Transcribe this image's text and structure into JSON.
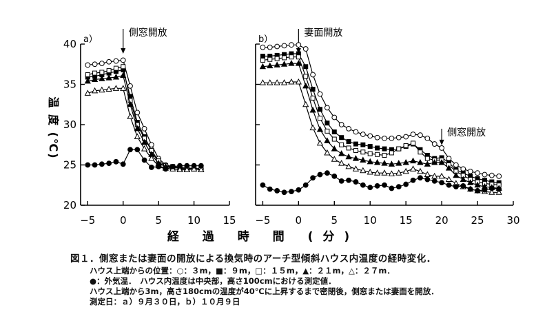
{
  "figure": {
    "y_axis_label": "温 度 (℃)",
    "x_axis_label": "経 過 時 間 (分)",
    "caption": {
      "title": "図１．側窓または妻面の開放による換気時のアーチ型傾斜ハウス内温度の経時変化．",
      "line1": "ハウス上端からの位置：○：３m，■：９m，□：１５m，▲：２１m，△：２７m．",
      "line2": "●：外気温．　ハウス内温度は中央部，高さ100cmにおける測定値．",
      "line3": "ハウス上端から3m，高さ180cmの温度が40℃に上昇するまで密閉後，側窓または妻面を開放．",
      "line4": "測定日：ａ）９月３０日，ｂ）１０月９日"
    }
  },
  "chart_data": [
    {
      "type": "line",
      "panel_label": "a）",
      "annotations": [
        {
          "text": "側窓開放",
          "x": 0
        }
      ],
      "xlim": [
        -6,
        15
      ],
      "ylim": [
        20,
        40
      ],
      "x_ticks": [
        -5,
        0,
        5,
        10,
        15
      ],
      "y_ticks": [
        20,
        25,
        30,
        35,
        40
      ],
      "xlabel": "経過時間（分）",
      "ylabel": "温度（℃）",
      "x": [
        -5,
        -4,
        -3,
        -2,
        -1,
        0,
        1,
        2,
        3,
        4,
        5,
        6,
        7,
        8,
        9,
        10,
        11
      ],
      "series": [
        {
          "name": "3m",
          "marker": "open-circle",
          "values": [
            37.4,
            37.5,
            37.6,
            37.8,
            37.9,
            38.0,
            34.8,
            31.5,
            29.5,
            27.5,
            25.8,
            25.0,
            24.8,
            24.7,
            24.6,
            24.6,
            24.5
          ]
        },
        {
          "name": "9m",
          "marker": "filled-square",
          "values": [
            35.9,
            36.0,
            36.2,
            36.4,
            36.6,
            36.8,
            33.5,
            30.3,
            28.5,
            26.8,
            25.3,
            24.8,
            24.7,
            24.6,
            24.5,
            24.5,
            24.5
          ]
        },
        {
          "name": "15m",
          "marker": "open-square",
          "values": [
            36.2,
            36.4,
            36.5,
            36.7,
            37.0,
            37.2,
            33.0,
            30.0,
            28.3,
            26.8,
            25.5,
            24.9,
            24.8,
            24.6,
            24.5,
            24.5,
            24.4
          ]
        },
        {
          "name": "21m",
          "marker": "filled-triangle",
          "values": [
            35.4,
            35.6,
            35.7,
            35.8,
            35.9,
            36.1,
            32.5,
            29.5,
            27.8,
            26.3,
            25.2,
            24.8,
            24.7,
            24.6,
            24.5,
            24.5,
            24.4
          ]
        },
        {
          "name": "27m",
          "marker": "open-triangle",
          "values": [
            33.9,
            34.2,
            34.3,
            34.4,
            34.5,
            34.5,
            31.0,
            28.5,
            27.0,
            25.8,
            24.9,
            24.6,
            24.5,
            24.4,
            24.4,
            24.5,
            24.4
          ]
        },
        {
          "name": "外気温",
          "marker": "filled-circle",
          "values": [
            25.0,
            25.0,
            25.1,
            25.2,
            25.4,
            25.1,
            26.9,
            26.9,
            25.6,
            24.7,
            24.8,
            24.5,
            24.8,
            24.9,
            24.9,
            24.9,
            24.9
          ]
        }
      ]
    },
    {
      "type": "line",
      "panel_label": "b）",
      "annotations": [
        {
          "text": "妻面開放",
          "x": 0
        },
        {
          "text": "側窓開放",
          "x": 20
        }
      ],
      "xlim": [
        -6,
        30
      ],
      "ylim": [
        20,
        40
      ],
      "x_ticks": [
        -5,
        0,
        5,
        10,
        15,
        20,
        25,
        30
      ],
      "y_ticks": [
        20,
        25,
        30,
        35,
        40
      ],
      "xlabel": "経過時間（分）",
      "ylabel": "温度（℃）",
      "x": [
        -5,
        -4,
        -3,
        -2,
        -1,
        0,
        1,
        2,
        3,
        4,
        5,
        6,
        7,
        8,
        9,
        10,
        11,
        12,
        13,
        14,
        15,
        16,
        17,
        18,
        19,
        20,
        21,
        22,
        23,
        24,
        25,
        26,
        27,
        28
      ],
      "series": [
        {
          "name": "3m",
          "marker": "open-circle",
          "values": [
            39.6,
            39.6,
            39.7,
            39.8,
            39.9,
            39.9,
            39.4,
            36.2,
            33.8,
            32.1,
            30.9,
            30.0,
            29.5,
            29.1,
            28.8,
            28.6,
            28.4,
            28.3,
            28.3,
            28.4,
            28.5,
            28.8,
            28.7,
            28.3,
            27.6,
            27.1,
            25.8,
            25.0,
            24.5,
            24.2,
            24.0,
            23.8,
            23.7,
            23.6
          ]
        },
        {
          "name": "9m",
          "marker": "filled-square",
          "values": [
            38.5,
            38.5,
            38.6,
            38.7,
            38.8,
            38.8,
            37.2,
            34.4,
            31.9,
            30.2,
            29.1,
            28.4,
            27.9,
            27.6,
            27.5,
            27.3,
            27.1,
            27.0,
            26.9,
            27.0,
            27.3,
            27.6,
            26.9,
            26.2,
            25.8,
            25.9,
            25.3,
            24.4,
            24.0,
            23.6,
            23.3,
            23.1,
            22.9,
            22.8
          ]
        },
        {
          "name": "15m",
          "marker": "open-square",
          "values": [
            38.0,
            38.1,
            38.2,
            38.3,
            38.4,
            38.4,
            36.0,
            33.3,
            30.8,
            29.2,
            28.2,
            27.5,
            27.1,
            26.8,
            26.6,
            26.4,
            26.3,
            26.2,
            26.5,
            27.0,
            27.4,
            27.7,
            26.6,
            25.8,
            25.6,
            25.6,
            25.0,
            24.2,
            23.7,
            23.2,
            22.9,
            22.7,
            22.6,
            22.5
          ]
        },
        {
          "name": "21m",
          "marker": "filled-triangle",
          "values": [
            37.2,
            37.3,
            37.4,
            37.5,
            37.6,
            37.6,
            34.8,
            31.8,
            29.4,
            28.0,
            27.0,
            26.4,
            26.0,
            25.8,
            25.6,
            25.4,
            25.3,
            25.2,
            25.1,
            25.2,
            25.3,
            25.5,
            25.3,
            25.1,
            25.3,
            25.3,
            24.6,
            23.7,
            23.2,
            22.8,
            22.5,
            22.3,
            22.2,
            22.1
          ]
        },
        {
          "name": "27m",
          "marker": "open-triangle",
          "values": [
            35.2,
            35.2,
            35.2,
            35.2,
            35.3,
            35.3,
            32.5,
            29.6,
            27.7,
            26.5,
            25.7,
            25.2,
            24.8,
            24.5,
            24.3,
            24.1,
            24.0,
            24.0,
            23.9,
            24.0,
            24.2,
            24.5,
            24.2,
            23.8,
            23.6,
            23.6,
            23.2,
            22.7,
            22.3,
            22.0,
            21.8,
            21.7,
            21.6,
            21.6
          ]
        },
        {
          "name": "外気温",
          "marker": "filled-circle",
          "values": [
            22.5,
            22.0,
            21.8,
            21.6,
            21.7,
            21.9,
            22.5,
            23.4,
            23.8,
            24.0,
            23.6,
            23.0,
            23.1,
            22.9,
            22.5,
            22.2,
            22.4,
            22.5,
            22.1,
            22.3,
            22.6,
            23.1,
            23.4,
            23.2,
            23.0,
            22.8,
            22.5,
            22.3,
            22.4,
            22.0,
            21.8,
            21.9,
            22.1,
            22.0
          ]
        }
      ]
    }
  ]
}
